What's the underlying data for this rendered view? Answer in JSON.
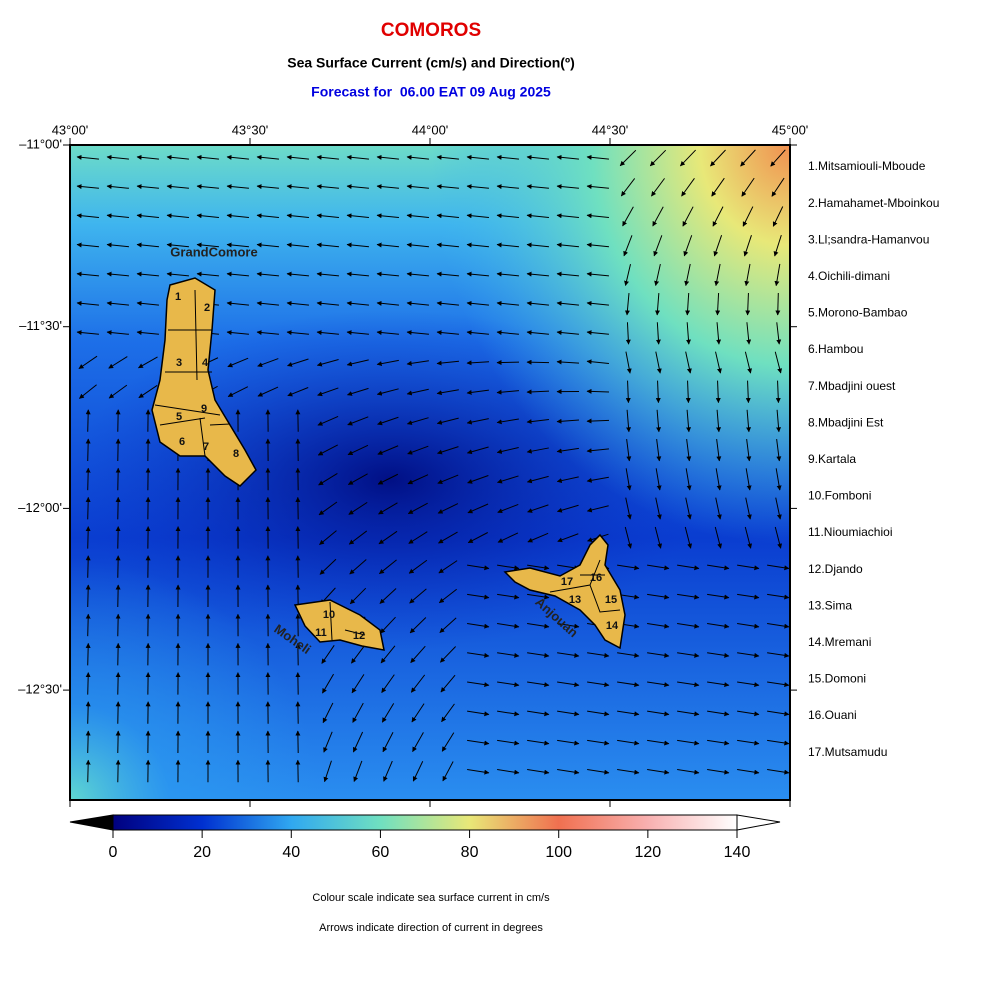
{
  "title": "COMOROS",
  "subtitle": "Sea Surface Current (cm/s) and Direction(º)",
  "forecast": "Forecast for  06.00 EAT 09 Aug 2025",
  "map": {
    "lon_labels": [
      "43°00'",
      "43°30'",
      "44°00'",
      "44°30'",
      "45°00'"
    ],
    "lat_labels": [
      "–11°00'",
      "–11°30'",
      "–12°00'",
      "–12°30'"
    ],
    "island_labels": [
      "GrandComore",
      "Moheli",
      "Anjouan"
    ],
    "region_numbers": [
      "1",
      "2",
      "3",
      "4",
      "5",
      "6",
      "7",
      "8",
      "9",
      "10",
      "11",
      "12",
      "13",
      "14",
      "15",
      "16",
      "17"
    ]
  },
  "legend": [
    "1.Mitsamiouli-Mboude",
    "2.Hamahamet-Mboinkou",
    "3.Ll;sandra-Hamanvou",
    "4.Oichili-dimani",
    "5.Morono-Bambao",
    "6.Hambou",
    "7.Mbadjini ouest",
    "8.Mbadjini Est",
    "9.Kartala",
    "10.Fomboni",
    "11.Nioumiachioi",
    "12.Djando",
    "13.Sima",
    "14.Mremani",
    "15.Domoni",
    "16.Ouani",
    "17.Mutsamudu"
  ],
  "colorbar": {
    "lim": [
      0,
      140
    ],
    "ticks": [
      0,
      20,
      40,
      60,
      80,
      100,
      120,
      140
    ]
  },
  "notes": [
    "Colour scale indicate sea surface current in cm/s",
    "Arrows indicate direction of current in degrees"
  ]
}
